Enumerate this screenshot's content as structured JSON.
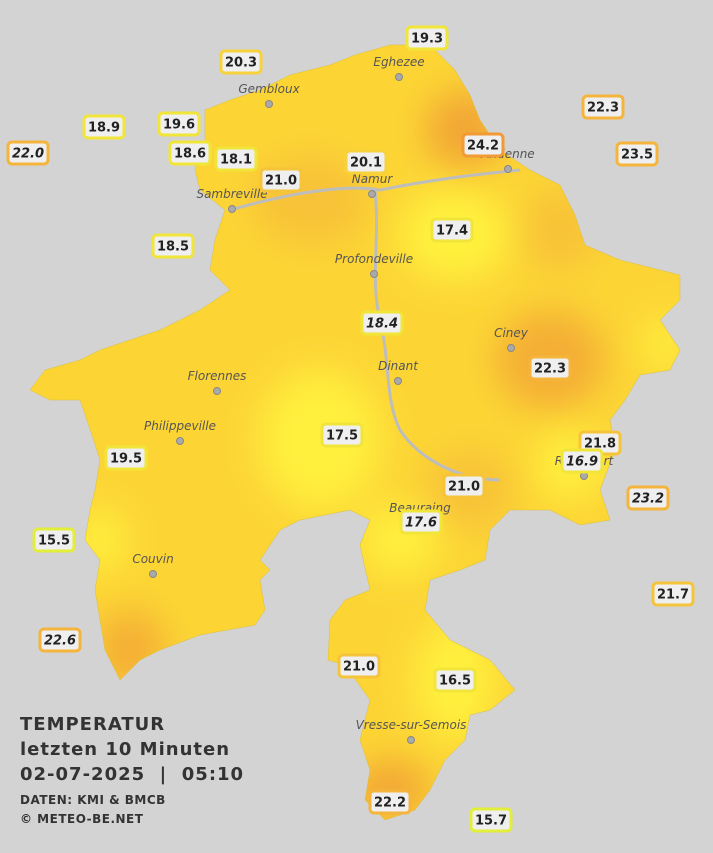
{
  "title": {
    "heading": "TEMPERATUR",
    "period": "letzten 10 Minuten",
    "datetime": "02-07-2025  |  05:10",
    "source": "DATEN: KMI & BMCB",
    "copyright": "© METEO-BE.NET"
  },
  "cities": [
    "Eghezee",
    "Gembloux",
    "Andenne",
    "Namur",
    "Sambreville",
    "Profondeville",
    "Ciney",
    "Dinant",
    "Florennes",
    "Philippeville",
    "Rochefort",
    "Beauraing",
    "Couvin",
    "Vresse-sur-Semois"
  ],
  "stations": [
    {
      "value": "19.3",
      "color": "#f1e53a"
    },
    {
      "value": "20.3",
      "color": "#f7d23a"
    },
    {
      "value": "22.3",
      "color": "#f5b53c"
    },
    {
      "value": "18.9",
      "color": "#f1e53a"
    },
    {
      "value": "19.6",
      "color": "#f1e53a"
    },
    {
      "value": "22.0",
      "color": "#f5b53c",
      "italic": true
    },
    {
      "value": "24.2",
      "color": "#f29a34"
    },
    {
      "value": "23.5",
      "color": "#f5b53c"
    },
    {
      "value": "18.6",
      "color": "#f1e53a"
    },
    {
      "value": "18.1",
      "color": "#f1e53a"
    },
    {
      "value": "20.1",
      "color": "#f7d23a"
    },
    {
      "value": "21.0",
      "color": "#f5c43a"
    },
    {
      "value": "17.4",
      "color": "#f1e53a"
    },
    {
      "value": "18.5",
      "color": "#f1e53a"
    },
    {
      "value": "18.4",
      "color": "#f1e53a",
      "italic": true
    },
    {
      "value": "22.3",
      "color": "#f5b53c"
    },
    {
      "value": "17.5",
      "color": "#f1e53a"
    },
    {
      "value": "21.8",
      "color": "#f5c43a"
    },
    {
      "value": "19.5",
      "color": "#f1e53a"
    },
    {
      "value": "16.9",
      "color": "#f1e53a",
      "italic": true
    },
    {
      "value": "21.0",
      "color": "#f5c43a"
    },
    {
      "value": "23.2",
      "color": "#f5b53c",
      "italic": true
    },
    {
      "value": "17.6",
      "color": "#f1e53a",
      "italic": true
    },
    {
      "value": "15.5",
      "color": "#e3ee3a"
    },
    {
      "value": "21.7",
      "color": "#f5c43a"
    },
    {
      "value": "22.6",
      "color": "#f5b53c",
      "italic": true
    },
    {
      "value": "21.0",
      "color": "#f5c43a"
    },
    {
      "value": "16.5",
      "color": "#f1e53a"
    },
    {
      "value": "22.2",
      "color": "#f5b53c"
    },
    {
      "value": "15.7",
      "color": "#e3ee3a"
    }
  ]
}
